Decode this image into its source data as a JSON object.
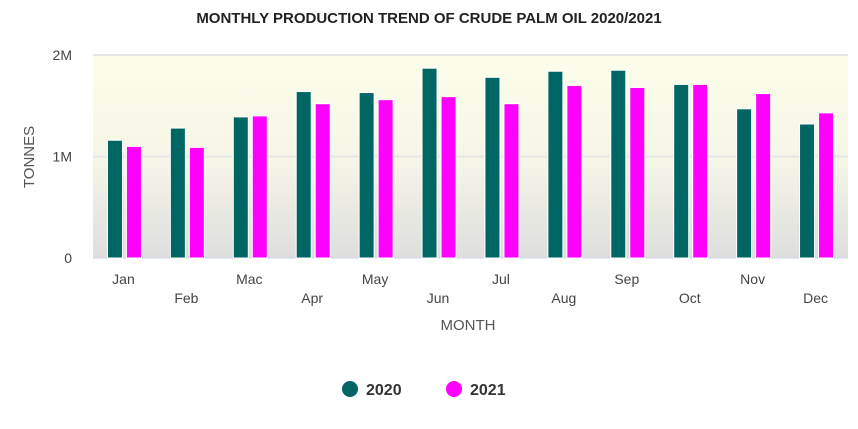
{
  "chart_data": {
    "type": "bar",
    "title": "MONTHLY PRODUCTION TREND OF CRUDE PALM OIL 2020/2021",
    "xlabel": "MONTH",
    "ylabel": "TONNES",
    "ylim": [
      0,
      2000000
    ],
    "yticks": [
      {
        "v": 0,
        "label": "0"
      },
      {
        "v": 1000000,
        "label": "1M"
      },
      {
        "v": 2000000,
        "label": "2M"
      }
    ],
    "categories": [
      "Jan",
      "Feb",
      "Mac",
      "Apr",
      "May",
      "Jun",
      "Jul",
      "Aug",
      "Sep",
      "Oct",
      "Nov",
      "Dec"
    ],
    "series": [
      {
        "name": "2020",
        "color": "#006663",
        "values": [
          1160000,
          1280000,
          1390000,
          1640000,
          1630000,
          1870000,
          1780000,
          1840000,
          1850000,
          1710000,
          1470000,
          1320000
        ]
      },
      {
        "name": "2021",
        "color": "#ff00ff",
        "values": [
          1100000,
          1090000,
          1400000,
          1520000,
          1560000,
          1590000,
          1520000,
          1700000,
          1680000,
          1710000,
          1620000,
          1430000
        ]
      }
    ],
    "grid": true,
    "legend": "bottom-center"
  }
}
